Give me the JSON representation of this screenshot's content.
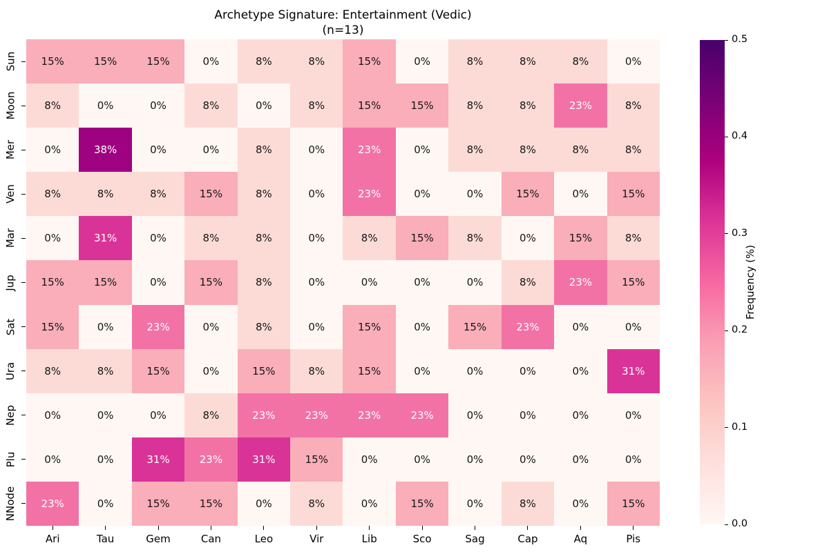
{
  "chart_data": {
    "type": "heatmap",
    "title": "Archetype Signature: Entertainment (Vedic)",
    "subtitle": "(n=13)",
    "x_labels": [
      "Ari",
      "Tau",
      "Gem",
      "Can",
      "Leo",
      "Vir",
      "Lib",
      "Sco",
      "Sag",
      "Cap",
      "Aq",
      "Pis"
    ],
    "y_labels": [
      "Sun",
      "Moon",
      "Mer",
      "Ven",
      "Mar",
      "Jup",
      "Sat",
      "Ura",
      "Nep",
      "Plu",
      "NNode"
    ],
    "values_percent": [
      [
        15,
        15,
        15,
        0,
        8,
        8,
        15,
        0,
        8,
        8,
        8,
        0
      ],
      [
        8,
        0,
        0,
        8,
        0,
        8,
        15,
        15,
        8,
        8,
        23,
        8
      ],
      [
        0,
        38,
        0,
        0,
        8,
        0,
        23,
        0,
        8,
        8,
        8,
        8
      ],
      [
        8,
        8,
        8,
        15,
        8,
        0,
        23,
        0,
        0,
        15,
        0,
        15
      ],
      [
        0,
        31,
        0,
        8,
        8,
        0,
        8,
        15,
        8,
        0,
        15,
        8
      ],
      [
        15,
        15,
        0,
        15,
        8,
        0,
        0,
        0,
        0,
        8,
        23,
        15
      ],
      [
        15,
        0,
        23,
        0,
        8,
        0,
        15,
        0,
        15,
        23,
        0,
        0
      ],
      [
        8,
        8,
        15,
        0,
        15,
        8,
        15,
        0,
        0,
        0,
        0,
        31
      ],
      [
        0,
        0,
        0,
        8,
        23,
        23,
        23,
        23,
        0,
        0,
        0,
        0
      ],
      [
        0,
        0,
        31,
        23,
        31,
        15,
        0,
        0,
        0,
        0,
        0,
        0
      ],
      [
        23,
        0,
        15,
        15,
        0,
        8,
        0,
        15,
        0,
        8,
        0,
        15
      ]
    ],
    "value_suffix": "%",
    "colorbar": {
      "label": "Frequency (%)",
      "ticks": [
        "0.0",
        "0.1",
        "0.2",
        "0.3",
        "0.4",
        "0.5"
      ],
      "vmin": 0.0,
      "vmax": 0.5
    },
    "colormap": "RdPu",
    "grid": false,
    "legend_position": "right-colorbar"
  },
  "colors": {
    "background": "#ffffff",
    "axis_text": "#000000",
    "cell_text_dark": "#151515",
    "cell_text_light": "#ffffff",
    "light_text_min_value": 23,
    "value_colors": {
      "0": "#fff7f3",
      "8": "#fcdbd6",
      "15": "#f9aeb9",
      "23": "#f272a5",
      "31": "#da3398",
      "38": "#9e0280"
    },
    "colormap_stops": [
      "#fff7f3",
      "#fde0dd",
      "#fcc5c0",
      "#fa9fb5",
      "#f768a1",
      "#dd3497",
      "#ae017e",
      "#7a0177",
      "#49006a"
    ]
  }
}
